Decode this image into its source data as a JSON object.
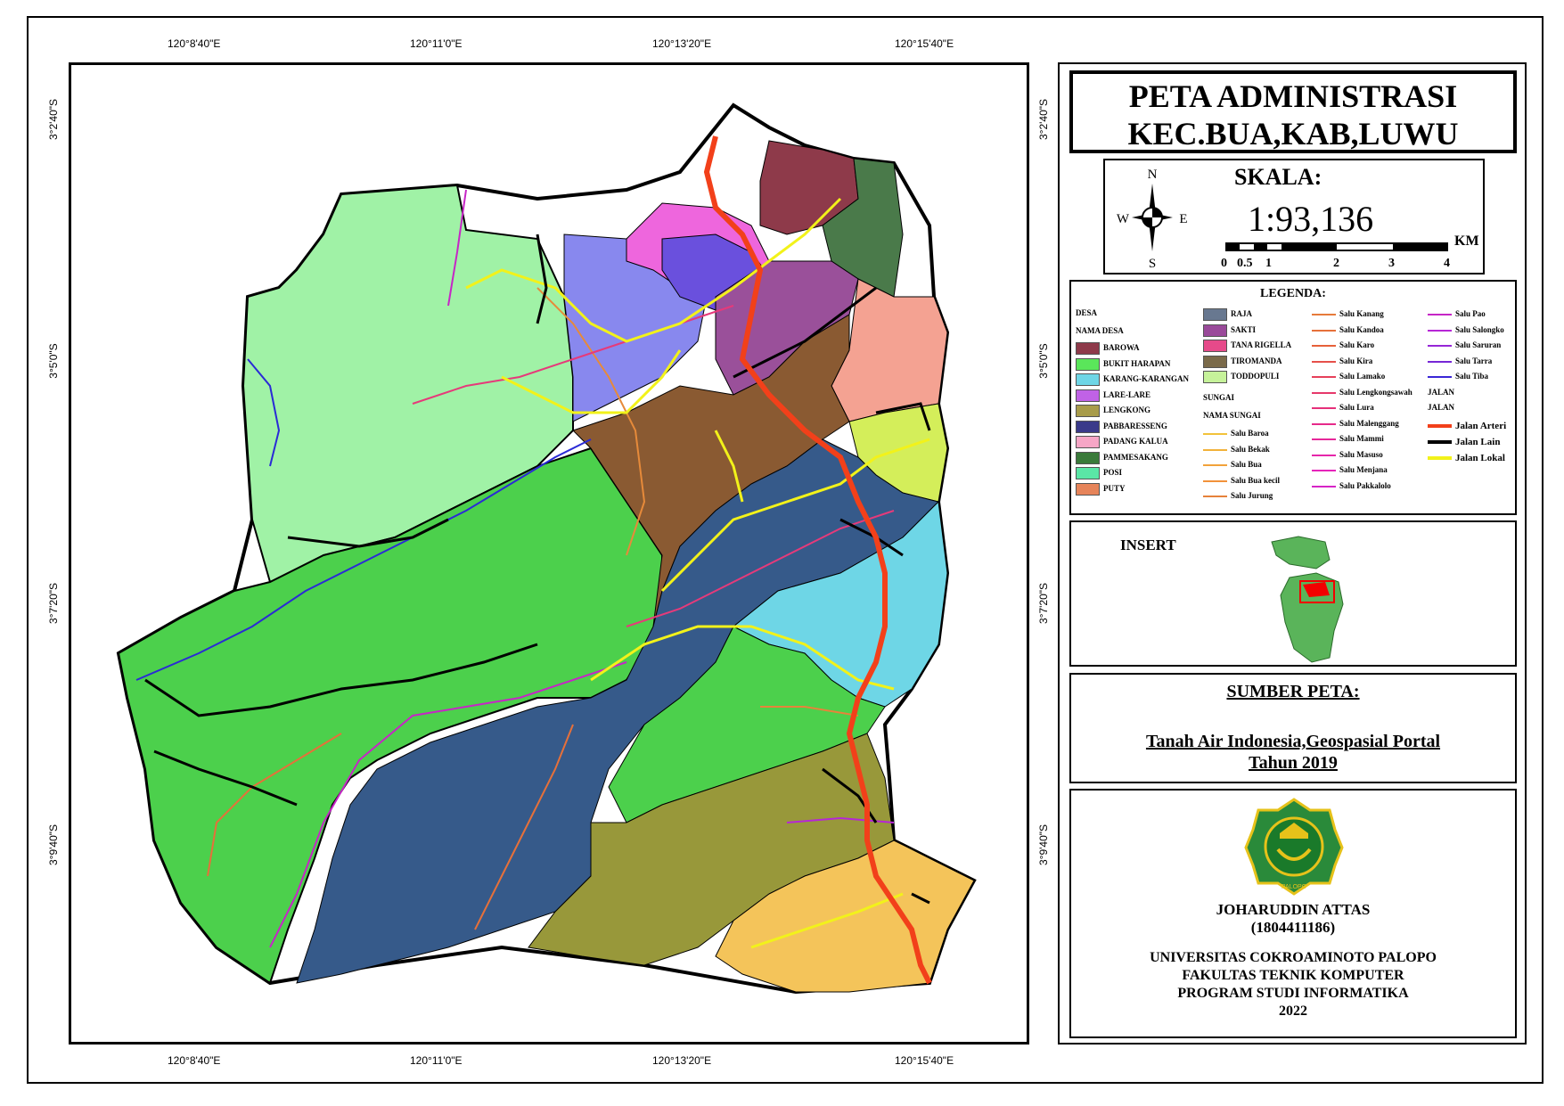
{
  "map": {
    "top_lon_labels": [
      "120°8'40\"E",
      "120°11'0\"E",
      "120°13'20\"E",
      "120°15'40\"E"
    ],
    "bottom_lon_labels": [
      "120°8'40\"E",
      "120°11'0\"E",
      "120°13'20\"E",
      "120°15'40\"E"
    ],
    "left_lat_labels": [
      "3°2'40\"S",
      "3°5'0\"S",
      "3°7'20\"S",
      "3°9'40\"S"
    ],
    "right_lat_labels": [
      "3°2'40\"S",
      "3°5'0\"S",
      "3°7'20\"S",
      "3°9'40\"S"
    ]
  },
  "title": {
    "line1": "PETA ADMINISTRASI",
    "line2": "KEC.BUA,KAB,LUWU"
  },
  "scale": {
    "heading": "SKALA:",
    "ratio": "1:93,136",
    "unit": "KM",
    "ticks": [
      "0",
      "0.5",
      "1",
      "2",
      "3",
      "4"
    ],
    "compass": {
      "n": "N",
      "s": "S",
      "e": "E",
      "w": "W"
    }
  },
  "legend": {
    "heading": "LEGENDA:",
    "desa_heading": "DESA",
    "nama_desa_heading": "NAMA DESA",
    "desa_col1": [
      {
        "label": "BAROWA",
        "color": "#8e3a4a"
      },
      {
        "label": "BUKIT HARAPAN",
        "color": "#5ae65a"
      },
      {
        "label": "KARANG-KARANGAN",
        "color": "#6ed6e6"
      },
      {
        "label": "LARE-LARE",
        "color": "#c062e6"
      },
      {
        "label": "LENGKONG",
        "color": "#a89c4a"
      },
      {
        "label": "PABBARESSENG",
        "color": "#3a3a8a"
      },
      {
        "label": "PADANG KALUA",
        "color": "#f6a6c6"
      },
      {
        "label": "PAMMESAKANG",
        "color": "#3a7a3a"
      },
      {
        "label": "POSI",
        "color": "#5ae6a6"
      },
      {
        "label": "PUTY",
        "color": "#e6845a"
      }
    ],
    "desa_col2": [
      {
        "label": "RAJA",
        "color": "#687890"
      },
      {
        "label": "SAKTI",
        "color": "#9a4a9a"
      },
      {
        "label": "TANA RIGELLA",
        "color": "#e64a8a"
      },
      {
        "label": "TIROMANDA",
        "color": "#7a6a4a"
      },
      {
        "label": "TODDOPULI",
        "color": "#c6f29a"
      }
    ],
    "sungai_heading": "SUNGAI",
    "nama_sungai_heading": "NAMA SUNGAI",
    "sungai_col2": [
      {
        "label": "Salu Baroa",
        "color": "#f2c23a"
      },
      {
        "label": "Salu Bekak",
        "color": "#f2b23a"
      },
      {
        "label": "Salu Bua",
        "color": "#f2a23a"
      },
      {
        "label": "Salu Bua kecil",
        "color": "#f2923a"
      },
      {
        "label": "Salu Jurung",
        "color": "#e6823a"
      }
    ],
    "sungai_col3": [
      {
        "label": "Salu Kanang",
        "color": "#e67a3a"
      },
      {
        "label": "Salu Kandoa",
        "color": "#e6703a"
      },
      {
        "label": "Salu Karo",
        "color": "#e6603a"
      },
      {
        "label": "Salu Kira",
        "color": "#e6504a"
      },
      {
        "label": "Salu Lamako",
        "color": "#e6405a"
      },
      {
        "label": "Salu Lengkongsawah",
        "color": "#e6386a"
      },
      {
        "label": "Salu Lura",
        "color": "#e6307a"
      },
      {
        "label": "Salu Malenggang",
        "color": "#e62a8a"
      },
      {
        "label": "Salu Mammi",
        "color": "#e6289a"
      },
      {
        "label": "Salu Masuso",
        "color": "#e626aa"
      },
      {
        "label": "Salu Menjana",
        "color": "#e624ba"
      },
      {
        "label": "Salu Pakkalolo",
        "color": "#d624c6"
      }
    ],
    "sungai_col4": [
      {
        "label": "Salu Pao",
        "color": "#c626c6"
      },
      {
        "label": "Salu Salongko",
        "color": "#b626d6"
      },
      {
        "label": "Salu Saruran",
        "color": "#9626d6"
      },
      {
        "label": "Salu Tarra",
        "color": "#7626d6"
      },
      {
        "label": "Salu Tiba",
        "color": "#3a26d6"
      }
    ],
    "jalan_heading1": "JALAN",
    "jalan_heading2": "JALAN",
    "jalan": [
      {
        "label": "Jalan Arteri",
        "color": "#f2401a"
      },
      {
        "label": "Jalan Lain",
        "color": "#000000"
      },
      {
        "label": "Jalan Lokal",
        "color": "#f2f21a"
      }
    ]
  },
  "insert": {
    "heading": "INSERT"
  },
  "source": {
    "heading": "SUMBER PETA:",
    "line1": "Tanah Air Indonesia,Geospasial Portal",
    "line2": "Tahun 2019"
  },
  "author": {
    "name": "JOHARUDDIN ATTAS",
    "id": "(1804411186)",
    "univ": "UNIVERSITAS COKROAMINOTO PALOPO",
    "faculty": "FAKULTAS TEKNIK KOMPUTER",
    "program": "PROGRAM STUDI INFORMATIKA",
    "year": "2022",
    "logo_text": "PALOPO"
  },
  "colors": {
    "arteri": "#f2401a",
    "lokal": "#f2f21a"
  }
}
